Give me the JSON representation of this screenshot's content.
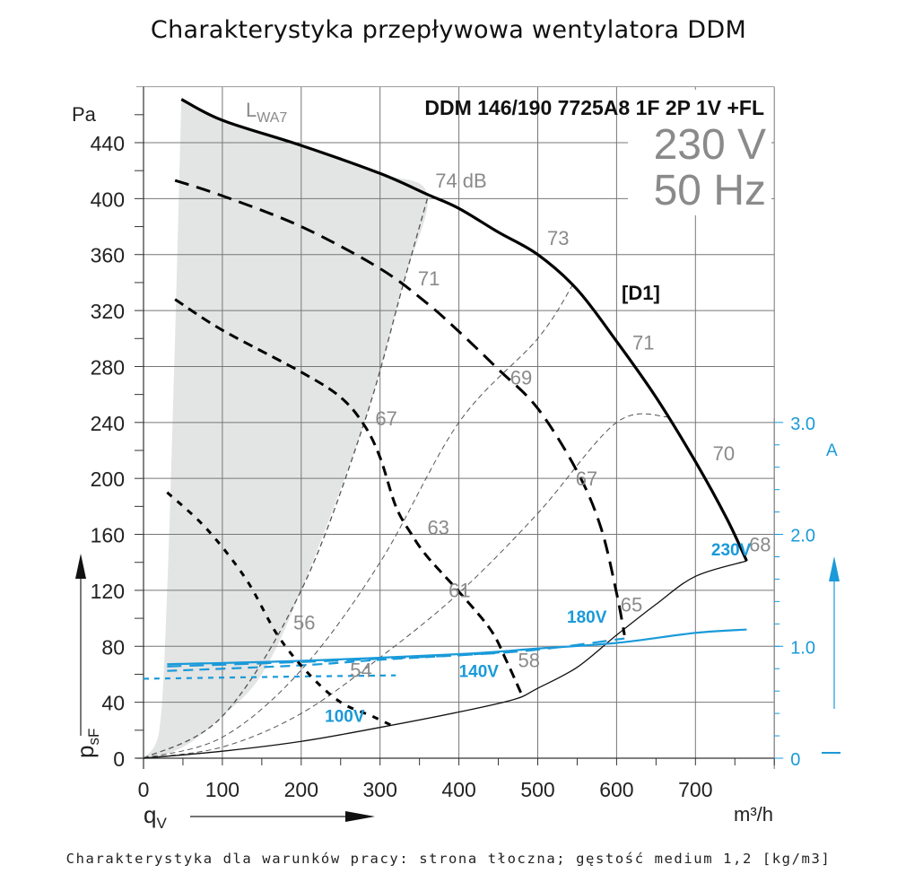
{
  "page": {
    "title": "Charakterystyka przepływowa wentylatora DDM",
    "footnote": "Charakterystyka dla warunków pracy: strona tłoczna; gęstość medium 1,2 [kg/m3]"
  },
  "chart_data": {
    "type": "line",
    "title": "DDM 146/190 7725A8 1F 2P 1V +FL",
    "supply": {
      "voltage": "230 V",
      "frequency": "50 Hz"
    },
    "curve_set_label": "[D1]",
    "noise_area_label": "LWA7",
    "xlabel": "qV",
    "xunit": "m³/h",
    "ylabel": "psF",
    "yunit": "Pa",
    "y2unit": "A",
    "xlim": [
      0,
      800
    ],
    "ylim": [
      0,
      480
    ],
    "y2lim": [
      0,
      3.0
    ],
    "grid": true,
    "x_ticks": [
      0,
      100,
      200,
      300,
      400,
      500,
      600,
      700
    ],
    "y_ticks": [
      0,
      40,
      80,
      120,
      160,
      200,
      240,
      280,
      320,
      360,
      400,
      440
    ],
    "y2_ticks": [
      "0",
      "1.0",
      "2.0",
      "3.0"
    ],
    "colors": {
      "pressure": "#000000",
      "current": "#1a9ad9",
      "noise_label": "#8a8a8a",
      "shaded_area": "#e3e4e4"
    },
    "pressure_series": [
      {
        "name": "230V",
        "style": "solid",
        "points": [
          [
            48,
            471
          ],
          [
            100,
            456
          ],
          [
            200,
            438
          ],
          [
            300,
            418
          ],
          [
            360,
            403
          ],
          [
            400,
            393
          ],
          [
            450,
            376
          ],
          [
            500,
            360
          ],
          [
            550,
            335
          ],
          [
            600,
            298
          ],
          [
            650,
            258
          ],
          [
            700,
            212
          ],
          [
            740,
            171
          ],
          [
            765,
            141
          ]
        ]
      },
      {
        "name": "180V",
        "style": "long-dash",
        "points": [
          [
            40,
            413
          ],
          [
            100,
            402
          ],
          [
            200,
            380
          ],
          [
            300,
            350
          ],
          [
            360,
            325
          ],
          [
            400,
            305
          ],
          [
            450,
            278
          ],
          [
            500,
            250
          ],
          [
            550,
            205
          ],
          [
            580,
            165
          ],
          [
            600,
            118
          ],
          [
            610,
            88
          ]
        ]
      },
      {
        "name": "140V",
        "style": "dash",
        "points": [
          [
            40,
            328
          ],
          [
            100,
            306
          ],
          [
            200,
            276
          ],
          [
            250,
            258
          ],
          [
            280,
            238
          ],
          [
            300,
            215
          ],
          [
            320,
            180
          ],
          [
            340,
            160
          ],
          [
            360,
            144
          ],
          [
            400,
            119
          ],
          [
            440,
            92
          ],
          [
            460,
            70
          ],
          [
            480,
            45
          ]
        ]
      },
      {
        "name": "100V",
        "style": "dot-dash",
        "points": [
          [
            30,
            190
          ],
          [
            80,
            164
          ],
          [
            130,
            128
          ],
          [
            170,
            88
          ],
          [
            210,
            60
          ],
          [
            250,
            40
          ],
          [
            290,
            30
          ],
          [
            320,
            22
          ]
        ]
      }
    ],
    "current_series": [
      {
        "name": "230V",
        "style": "solid",
        "points": [
          [
            30,
            0.84
          ],
          [
            200,
            0.87
          ],
          [
            400,
            0.93
          ],
          [
            500,
            0.98
          ],
          [
            600,
            1.03
          ],
          [
            700,
            1.12
          ],
          [
            765,
            1.15
          ]
        ]
      },
      {
        "name": "180V",
        "style": "long-dash",
        "points": [
          [
            30,
            0.82
          ],
          [
            200,
            0.86
          ],
          [
            400,
            0.92
          ],
          [
            500,
            0.97
          ],
          [
            610,
            1.07
          ]
        ]
      },
      {
        "name": "140V",
        "style": "dash",
        "points": [
          [
            30,
            0.78
          ],
          [
            200,
            0.83
          ],
          [
            300,
            0.88
          ],
          [
            400,
            0.92
          ],
          [
            480,
            0.96
          ]
        ]
      },
      {
        "name": "100V",
        "style": "dot",
        "points": [
          [
            0,
            0.71
          ],
          [
            200,
            0.73
          ],
          [
            320,
            0.74
          ]
        ]
      }
    ],
    "system_curves": [
      {
        "style": "dashed",
        "points": [
          [
            0,
            0
          ],
          [
            100,
            30
          ],
          [
            200,
            120
          ],
          [
            280,
            240
          ],
          [
            330,
            340
          ],
          [
            360,
            400
          ]
        ]
      },
      {
        "style": "dashed",
        "points": [
          [
            0,
            0
          ],
          [
            100,
            15
          ],
          [
            200,
            63
          ],
          [
            300,
            140
          ],
          [
            400,
            240
          ],
          [
            500,
            300
          ],
          [
            546,
            340
          ]
        ]
      },
      {
        "style": "dashed",
        "points": [
          [
            0,
            0
          ],
          [
            100,
            8
          ],
          [
            200,
            32
          ],
          [
            300,
            72
          ],
          [
            400,
            118
          ],
          [
            500,
            175
          ],
          [
            600,
            240
          ],
          [
            666,
            244
          ]
        ]
      },
      {
        "style": "solid",
        "points": [
          [
            0,
            0
          ],
          [
            100,
            5
          ],
          [
            200,
            12
          ],
          [
            300,
            22
          ],
          [
            400,
            33
          ],
          [
            470,
            42
          ],
          [
            500,
            50
          ],
          [
            550,
            65
          ],
          [
            600,
            88
          ],
          [
            650,
            110
          ],
          [
            700,
            130
          ],
          [
            765,
            141
          ]
        ]
      }
    ],
    "shaded_region": [
      [
        48,
        471
      ],
      [
        100,
        456
      ],
      [
        200,
        438
      ],
      [
        300,
        418
      ],
      [
        360,
        403
      ],
      [
        330,
        340
      ],
      [
        280,
        240
      ],
      [
        200,
        120
      ],
      [
        150,
        60
      ],
      [
        100,
        30
      ],
      [
        50,
        8
      ],
      [
        0,
        0
      ],
      [
        20,
        20
      ],
      [
        30,
        120
      ],
      [
        40,
        300
      ]
    ],
    "voltage_labels": [
      {
        "text": "230V",
        "x": 720,
        "y": 145
      },
      {
        "text": "180V",
        "x": 537,
        "y": 97
      },
      {
        "text": "140V",
        "x": 400,
        "y": 58
      },
      {
        "text": "100V",
        "x": 230,
        "y": 26
      }
    ],
    "noise_labels": [
      {
        "text": "74 dB",
        "x": 370,
        "y": 408
      },
      {
        "text": "73",
        "x": 512,
        "y": 367
      },
      {
        "text": "71",
        "x": 620,
        "y": 292
      },
      {
        "text": "70",
        "x": 722,
        "y": 213
      },
      {
        "text": "68",
        "x": 768,
        "y": 148
      },
      {
        "text": "71",
        "x": 348,
        "y": 338
      },
      {
        "text": "69",
        "x": 465,
        "y": 267
      },
      {
        "text": "67",
        "x": 548,
        "y": 195
      },
      {
        "text": "65",
        "x": 605,
        "y": 105
      },
      {
        "text": "67",
        "x": 294,
        "y": 238
      },
      {
        "text": "63",
        "x": 360,
        "y": 160
      },
      {
        "text": "61",
        "x": 387,
        "y": 115
      },
      {
        "text": "58",
        "x": 475,
        "y": 65
      },
      {
        "text": "56",
        "x": 190,
        "y": 92
      },
      {
        "text": "54",
        "x": 262,
        "y": 58
      }
    ]
  }
}
